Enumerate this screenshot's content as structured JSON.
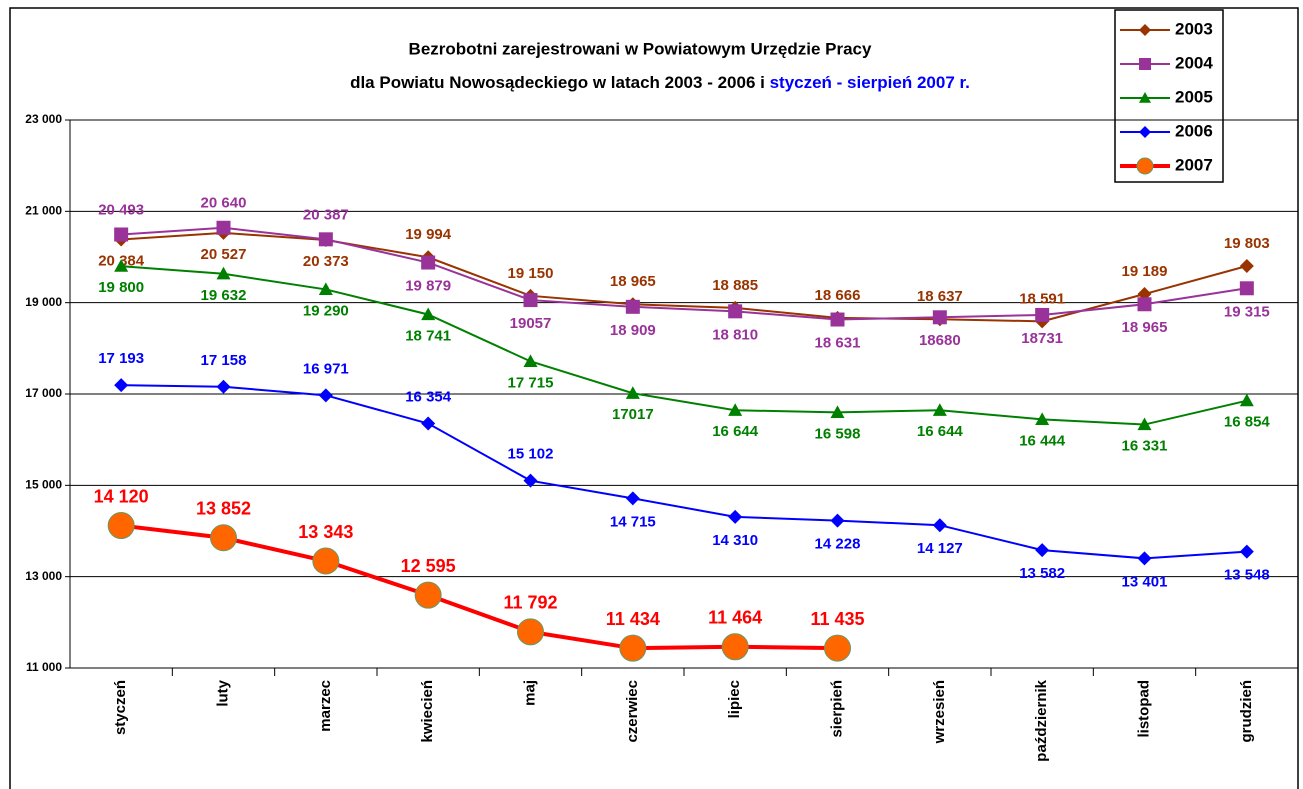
{
  "chart_data": {
    "type": "line",
    "title": "Bezrobotni zarejestrowani w Powiatowym Urzędzie Pracy",
    "subtitle": [
      "dla Powiatu Nowosądeckiego w latach 2003 - 2006 i",
      "styczeń - sierpień 2007 r."
    ],
    "categories": [
      "styczeń",
      "luty",
      "marzec",
      "kwiecień",
      "maj",
      "czerwiec",
      "lipiec",
      "sierpień",
      "wrzesień",
      "październik",
      "listopad",
      "grudzień"
    ],
    "ylim": [
      11000,
      23000
    ],
    "yticks": [
      {
        "value": 11000,
        "label": "11 000"
      },
      {
        "value": 13000,
        "label": "13 000"
      },
      {
        "value": 15000,
        "label": "15 000"
      },
      {
        "value": 17000,
        "label": "17 000"
      },
      {
        "value": 19000,
        "label": "19 000"
      },
      {
        "value": 21000,
        "label": "21 000"
      },
      {
        "value": 23000,
        "label": "23 000"
      }
    ],
    "grid": true,
    "legend": "top-right",
    "series": [
      {
        "name": "2003",
        "color": "#993300",
        "marker": "diamond",
        "values": [
          20384,
          20527,
          20373,
          19994,
          19150,
          18965,
          18885,
          18666,
          18637,
          18591,
          19189,
          19803
        ],
        "value_labels": [
          "20 384",
          "20 527",
          "20 373",
          "19 994",
          "19 150",
          "18 965",
          "18 885",
          "18 666",
          "18 637",
          "18 591",
          "19 189",
          "19 803"
        ]
      },
      {
        "name": "2004",
        "color": "#993399",
        "marker": "square",
        "values": [
          20493,
          20640,
          20387,
          19879,
          19057,
          18909,
          18810,
          18631,
          18680,
          18731,
          18965,
          19315
        ],
        "value_labels": [
          "20 493",
          "20 640",
          "20 387",
          "19 879",
          "19057",
          "18 909",
          "18 810",
          "18 631",
          "18680",
          "18731",
          "18 965",
          "19 315"
        ]
      },
      {
        "name": "2005",
        "color": "#008000",
        "marker": "triangle",
        "values": [
          19800,
          19632,
          19290,
          18741,
          17715,
          17017,
          16644,
          16598,
          16644,
          16444,
          16331,
          16854
        ],
        "value_labels": [
          "19 800",
          "19 632",
          "19 290",
          "18 741",
          "17 715",
          "17017",
          "16 644",
          "16 598",
          "16 644",
          "16 444",
          "16 331",
          "16 854"
        ]
      },
      {
        "name": "2006",
        "color": "#0000ff",
        "marker": "diamond",
        "values": [
          17193,
          17158,
          16971,
          16354,
          15102,
          14715,
          14310,
          14228,
          14127,
          13582,
          13401,
          13548
        ],
        "value_labels": [
          "17 193",
          "17 158",
          "16 971",
          "16 354",
          "15 102",
          "14 715",
          "14 310",
          "14 228",
          "14 127",
          "13 582",
          "13 401",
          "13 548"
        ]
      },
      {
        "name": "2007",
        "color": "#ff0000",
        "marker_color": "#ff6600",
        "marker": "circle",
        "values": [
          14120,
          13852,
          13343,
          12595,
          11792,
          11434,
          11464,
          11435,
          null,
          null,
          null,
          null
        ],
        "value_labels": [
          "14 120",
          "13 852",
          "13 343",
          "12 595",
          "11 792",
          "11 434",
          "11 464",
          "11 435",
          null,
          null,
          null,
          null
        ]
      }
    ]
  }
}
